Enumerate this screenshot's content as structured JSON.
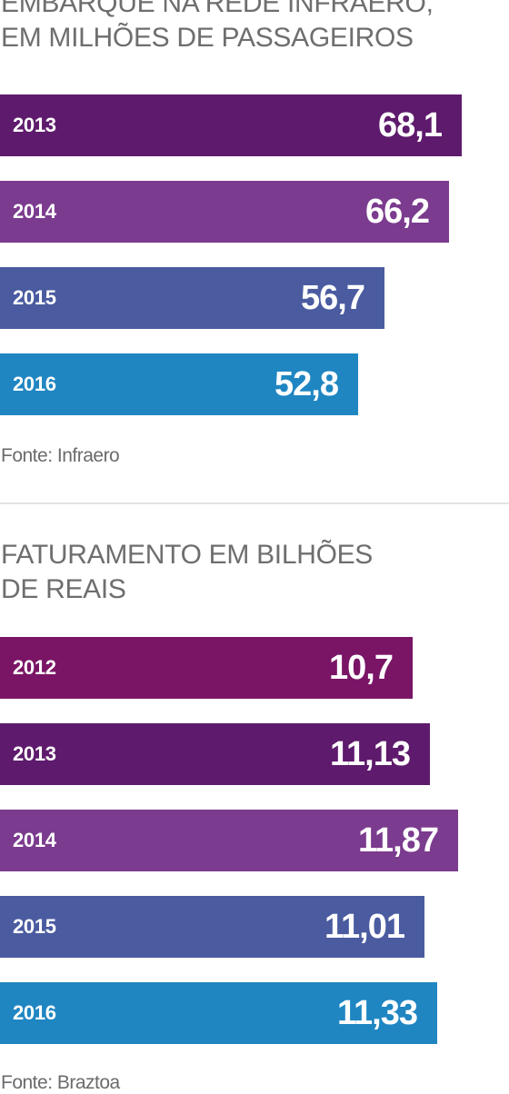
{
  "chart_data": [
    {
      "type": "bar",
      "orientation": "horizontal",
      "title": "EMBARQUE NA REDE INFRAERO,\nEM MILHÕES DE PASSAGEIROS",
      "categories": [
        "2013",
        "2014",
        "2015",
        "2016"
      ],
      "values": [
        68.1,
        66.2,
        56.7,
        52.8
      ],
      "value_labels": [
        "68,1",
        "66,2",
        "56,7",
        "52,8"
      ],
      "colors": [
        "#5e1a6c",
        "#7b3b8e",
        "#4a5ba0",
        "#1f86c2"
      ],
      "source": "Fonte: Infraero",
      "grid": false
    },
    {
      "type": "bar",
      "orientation": "horizontal",
      "title": "FATURAMENTO EM BILHÕES\nDE REAIS",
      "categories": [
        "2012",
        "2013",
        "2014",
        "2015",
        "2016"
      ],
      "values": [
        10.7,
        11.13,
        11.87,
        11.01,
        11.33
      ],
      "value_labels": [
        "10,7",
        "11,13",
        "11,87",
        "11,01",
        "11,33"
      ],
      "colors": [
        "#7a1566",
        "#5e1a6c",
        "#7b3b8e",
        "#4a5ba0",
        "#1f86c2"
      ],
      "source": "Fonte: Braztoa",
      "grid": false
    }
  ]
}
